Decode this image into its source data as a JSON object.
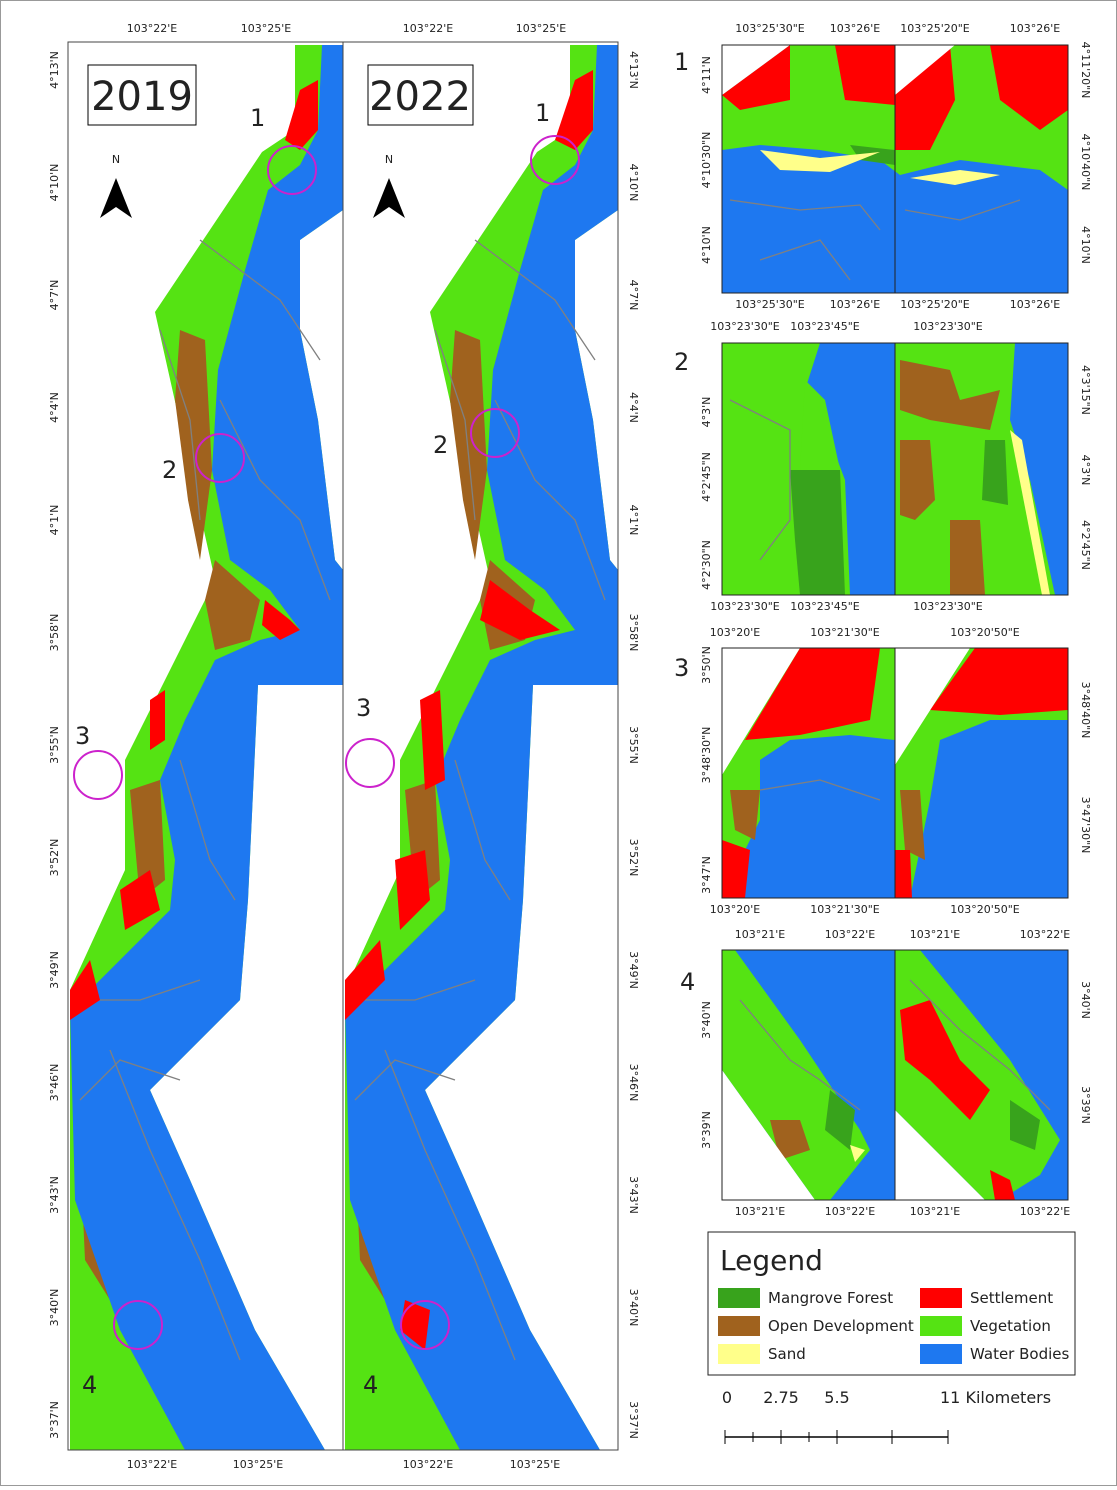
{
  "maps": [
    {
      "year": "2019",
      "sites": [
        "1",
        "2",
        "3",
        "4"
      ]
    },
    {
      "year": "2022",
      "sites": [
        "1",
        "2",
        "3",
        "4"
      ]
    }
  ],
  "north": "N",
  "main_axes": {
    "top": [
      "103°22'E",
      "103°25'E"
    ],
    "bottom": [
      "103°22'E",
      "103°25'E"
    ],
    "lat": [
      "4°13'N",
      "4°10'N",
      "4°7'N",
      "4°4'N",
      "4°1'N",
      "3°58'N",
      "3°55'N",
      "3°52'N",
      "3°49'N",
      "3°46'N",
      "3°43'N",
      "3°40'N",
      "3°37'N"
    ]
  },
  "insets": [
    {
      "label": "1",
      "top": [
        "103°25'30\"E",
        "103°26'E",
        "103°25'20\"E",
        "103°26'E"
      ],
      "bottom": [
        "103°25'30\"E",
        "103°26'E",
        "103°25'20\"E",
        "103°26'E"
      ],
      "left": [
        "4°11'N",
        "4°10'30\"N",
        "4°10'N"
      ],
      "right": [
        "4°11'20\"N",
        "4°10'40\"N",
        "4°10'N"
      ]
    },
    {
      "label": "2",
      "top": [
        "103°23'30\"E",
        "103°23'45\"E",
        "103°23'30\"E"
      ],
      "bottom": [
        "103°23'30\"E",
        "103°23'45\"E",
        "103°23'30\"E"
      ],
      "left": [
        "4°3'N",
        "4°2'45\"N",
        "4°2'30\"N"
      ],
      "right": [
        "4°3'15\"N",
        "4°3'N",
        "4°2'45\"N"
      ]
    },
    {
      "label": "3",
      "top": [
        "103°20'E",
        "103°21'30\"E",
        "103°20'50\"E"
      ],
      "bottom": [
        "103°20'E",
        "103°21'30\"E",
        "103°20'50\"E"
      ],
      "left": [
        "3°50'N",
        "3°48'30\"N",
        "3°47'N"
      ],
      "right": [
        "3°48'40\"N",
        "3°47'30\"N"
      ]
    },
    {
      "label": "4",
      "top": [
        "103°21'E",
        "103°22'E",
        "103°21'E",
        "103°22'E"
      ],
      "bottom": [
        "103°21'E",
        "103°22'E",
        "103°21'E",
        "103°22'E"
      ],
      "left": [
        "3°40'N",
        "3°39'N"
      ],
      "right": [
        "3°40'N",
        "3°39'N"
      ]
    }
  ],
  "legend": {
    "title": "Legend",
    "items": [
      {
        "label": "Mangrove Forest",
        "color": "#38a31c"
      },
      {
        "label": "Settlement",
        "color": "#ff0000"
      },
      {
        "label": "Open Development",
        "color": "#a0621e"
      },
      {
        "label": "Vegetation",
        "color": "#55e313"
      },
      {
        "label": "Sand",
        "color": "#ffff8a"
      },
      {
        "label": "Water Bodies",
        "color": "#1e78f0"
      }
    ]
  },
  "scale_bar": {
    "labels": [
      "0",
      "2.75",
      "5.5",
      "11 Kilometers"
    ]
  }
}
